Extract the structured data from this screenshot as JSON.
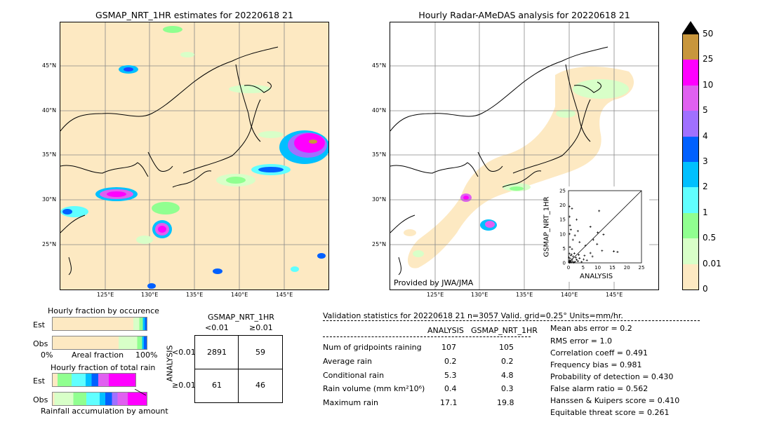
{
  "left_map": {
    "title": "GSMAP_NRT_1HR estimates for 20220618 21",
    "lat_labels": [
      "45°N",
      "40°N",
      "35°N",
      "30°N",
      "25°N"
    ],
    "lon_labels": [
      "125°E",
      "130°E",
      "135°E",
      "140°E",
      "145°E"
    ]
  },
  "right_map": {
    "title": "Hourly Radar-AMeDAS analysis for 20220618 21",
    "lat_labels": [
      "45°N",
      "40°N",
      "35°N",
      "30°N",
      "25°N"
    ],
    "lon_labels": [
      "125°E",
      "130°E",
      "135°E",
      "140°E",
      "145°E"
    ],
    "credit": "Provided by JWA/JMA"
  },
  "colorbar": {
    "labels": [
      "50",
      "25",
      "10",
      "5",
      "4",
      "3",
      "2",
      "1",
      "0.5",
      "0.01",
      "0"
    ],
    "colors": [
      "#c8963c",
      "#ff00ff",
      "#e060f0",
      "#a070ff",
      "#0060ff",
      "#00c0ff",
      "#60ffff",
      "#90ff90",
      "#d8ffc8",
      "#fde9c2"
    ]
  },
  "inset": {
    "ylabel": "GSMAP_NRT_1HR",
    "xlabel": "ANALYSIS",
    "ticks": [
      "0",
      "5",
      "10",
      "15",
      "20",
      "25"
    ]
  },
  "fraction_occurrence": {
    "title": "Hourly fraction by occurence",
    "rows": [
      "Est",
      "Obs"
    ],
    "axis_left": "0%",
    "axis_mid": "Areal fraction",
    "axis_right": "100%"
  },
  "fraction_total": {
    "title": "Hourly fraction of total rain",
    "rows": [
      "Est",
      "Obs"
    ],
    "footer": "Rainfall accumulation by amount"
  },
  "contingency": {
    "header": "GSMAP_NRT_1HR",
    "col_labels": [
      "<0.01",
      "≥0.01"
    ],
    "row_labels": [
      "<0.01",
      "≥0.01"
    ],
    "side_label": "ANALYSIS",
    "cells": [
      "2891",
      "59",
      "61",
      "46"
    ]
  },
  "validation": {
    "header": "Validation statistics for 20220618 21  n=3057 Valid. grid=0.25° Units=mm/hr.",
    "col_analysis": "ANALYSIS",
    "col_gsmap": "GSMAP_NRT_1HR",
    "rows": [
      {
        "label": "Num of gridpoints raining",
        "analysis": "107",
        "gsmap": "105"
      },
      {
        "label": "Average rain",
        "analysis": "0.2",
        "gsmap": "0.2"
      },
      {
        "label": "Conditional rain",
        "analysis": "5.3",
        "gsmap": "4.8"
      },
      {
        "label": "Rain volume (mm km²10⁶)",
        "analysis": "0.4",
        "gsmap": "0.3"
      },
      {
        "label": "Maximum rain",
        "analysis": "17.1",
        "gsmap": "19.8"
      }
    ],
    "scores": [
      "Mean abs error =    0.2",
      "RMS error =    1.0",
      "Correlation coeff =  0.491",
      "Frequency bias =  0.981",
      "Probability of detection =  0.430",
      "False alarm ratio =  0.562",
      "Hanssen & Kuipers score =  0.410",
      "Equitable threat score =  0.261"
    ]
  },
  "chart_data": {
    "type": "scatter",
    "xlabel": "ANALYSIS",
    "ylabel": "GSMAP_NRT_1HR",
    "xlim": [
      0,
      25
    ],
    "ylim": [
      0,
      25
    ],
    "points": [
      [
        0.3,
        19.5
      ],
      [
        1.2,
        18.8
      ],
      [
        0.4,
        16
      ],
      [
        2.8,
        15
      ],
      [
        10.5,
        18
      ],
      [
        0.5,
        13
      ],
      [
        0.8,
        11.5
      ],
      [
        3.2,
        11
      ],
      [
        7.5,
        12.5
      ],
      [
        0.4,
        10
      ],
      [
        2.2,
        9.5
      ],
      [
        10,
        10.5
      ],
      [
        8.5,
        8
      ],
      [
        12,
        9.8
      ],
      [
        1.5,
        8
      ],
      [
        3.8,
        7.2
      ],
      [
        5.8,
        6
      ],
      [
        0.5,
        5.5
      ],
      [
        1.2,
        4.8
      ],
      [
        9.8,
        6.5
      ],
      [
        11.5,
        4.2
      ],
      [
        15.5,
        4
      ],
      [
        16.8,
        3.8
      ],
      [
        7.5,
        3.4
      ],
      [
        3.5,
        2.8
      ],
      [
        5.5,
        2.5
      ],
      [
        8.2,
        2.2
      ],
      [
        0.3,
        3.2
      ],
      [
        0.8,
        2.6
      ],
      [
        1.6,
        2.2
      ],
      [
        2.5,
        1.8
      ],
      [
        0.5,
        1.5
      ],
      [
        1.2,
        1.2
      ],
      [
        2.8,
        1.1
      ],
      [
        0.3,
        0.8
      ],
      [
        0.7,
        0.6
      ],
      [
        1.4,
        0.5
      ],
      [
        2.2,
        0.4
      ],
      [
        3.2,
        0.6
      ],
      [
        4.5,
        0.3
      ],
      [
        0.2,
        0.3
      ],
      [
        0.9,
        0.2
      ],
      [
        1.8,
        0.15
      ],
      [
        0.4,
        0.1
      ],
      [
        0.15,
        1.9
      ],
      [
        3.8,
        1.6
      ],
      [
        5.2,
        1.2
      ],
      [
        6.3,
        0.9
      ],
      [
        2.0,
        3.3
      ],
      [
        1.0,
        2.9
      ]
    ]
  }
}
